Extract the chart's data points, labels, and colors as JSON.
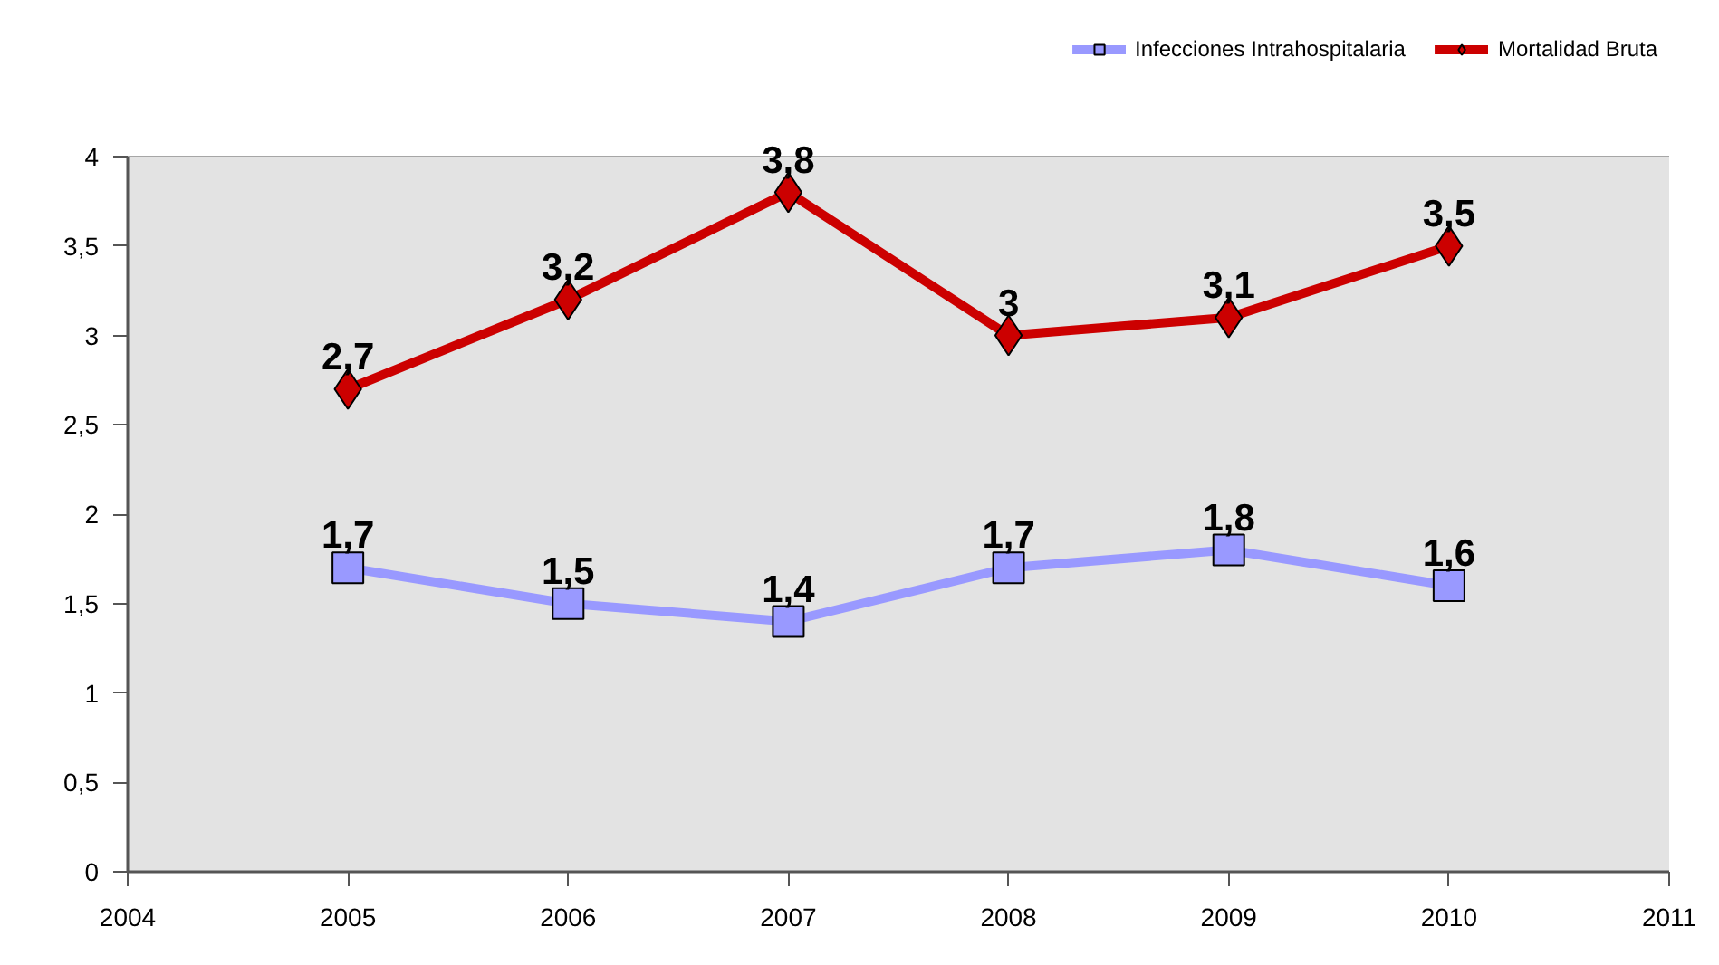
{
  "chart_data": {
    "type": "line",
    "x": [
      2005,
      2006,
      2007,
      2008,
      2009,
      2010
    ],
    "xlim": [
      2004,
      2011
    ],
    "xticks": [
      2004,
      2005,
      2006,
      2007,
      2008,
      2009,
      2010,
      2011
    ],
    "ylim": [
      0,
      4
    ],
    "yticks": [
      0,
      {
        "value": 0.5,
        "label": "0,5"
      },
      1,
      {
        "value": 1.5,
        "label": "1,5"
      },
      2,
      {
        "value": 2.5,
        "label": "2,5"
      },
      3,
      {
        "value": 3.5,
        "label": "3,5"
      },
      4
    ],
    "grid": "y",
    "legend": "top right",
    "series": [
      {
        "name": "Infecciones Intrahospitalaria",
        "color": "#9999ff",
        "marker": "square",
        "values": [
          1.7,
          1.5,
          1.4,
          1.7,
          1.8,
          1.6
        ],
        "value_labels": [
          "1,7",
          "1,5",
          "1,4",
          "1,7",
          "1,8",
          "1,6"
        ]
      },
      {
        "name": "Mortalidad Bruta",
        "color": "#cc0000",
        "marker": "diamond",
        "values": [
          2.7,
          3.2,
          3.8,
          3,
          3.1,
          3.5
        ],
        "value_labels": [
          "2,7",
          "3,2",
          "3,8",
          "3",
          "3,1",
          "3,5"
        ]
      }
    ]
  }
}
